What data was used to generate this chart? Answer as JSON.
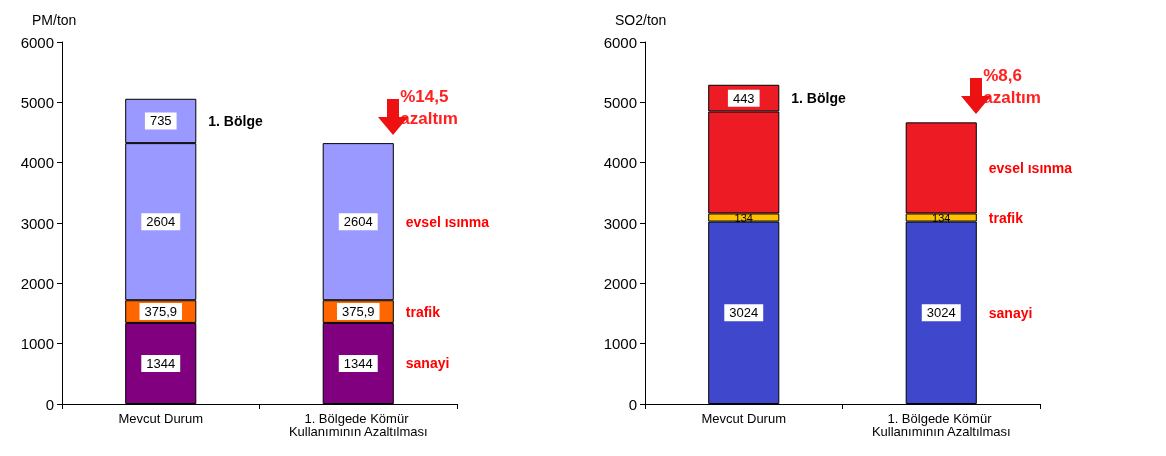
{
  "chart_data": [
    {
      "type": "bar",
      "ylabel": "PM/ton",
      "categories": [
        "Mevcut Durum",
        "1. Bölgede Kömür Kullanımının Azaltılması"
      ],
      "stacked": true,
      "ylim": [
        0,
        6000
      ],
      "yticks": [
        0,
        1000,
        2000,
        3000,
        4000,
        5000,
        6000
      ],
      "grid": false,
      "series": [
        {
          "name": "sanayi",
          "color": "#800080",
          "values": [
            1344,
            1344
          ],
          "value_labels": [
            "1344",
            "1344"
          ]
        },
        {
          "name": "trafik",
          "color": "#ff6600",
          "values": [
            375.9,
            375.9
          ],
          "value_labels": [
            "375,9",
            "375,9"
          ]
        },
        {
          "name": "evsel ısınma",
          "color": "#9999ff",
          "values": [
            2604,
            2604
          ],
          "value_labels": [
            "2604",
            "2604"
          ]
        },
        {
          "name": "1. Bölge",
          "color": "#9999ff",
          "values": [
            735,
            null
          ],
          "value_labels": [
            "735",
            null
          ]
        }
      ],
      "annotations": [
        "%14,5 azaltım"
      ]
    },
    {
      "type": "bar",
      "ylabel": "SO2/ton",
      "categories": [
        "Mevcut Durum",
        "1. Bölgede Kömür Kullanımının Azaltılması"
      ],
      "stacked": true,
      "ylim": [
        0,
        6000
      ],
      "yticks": [
        0,
        1000,
        2000,
        3000,
        4000,
        5000,
        6000
      ],
      "grid": false,
      "series": [
        {
          "name": "sanayi",
          "color": "#3f48cc",
          "values": [
            3024,
            3024
          ],
          "value_labels": [
            "3024",
            "3024"
          ]
        },
        {
          "name": "trafik",
          "color": "#ffc000",
          "values": [
            134,
            134
          ],
          "value_labels": [
            "134",
            "134"
          ]
        },
        {
          "name": "evsel ısınma",
          "color": "#ed1c24",
          "values": [
            1690,
            1510
          ],
          "value_labels": [
            null,
            null
          ]
        },
        {
          "name": "1. Bölge",
          "color": "#ed1c24",
          "values": [
            443,
            null
          ],
          "value_labels": [
            "443",
            null
          ]
        }
      ],
      "annotations": [
        "%8,6 azaltım"
      ]
    }
  ]
}
